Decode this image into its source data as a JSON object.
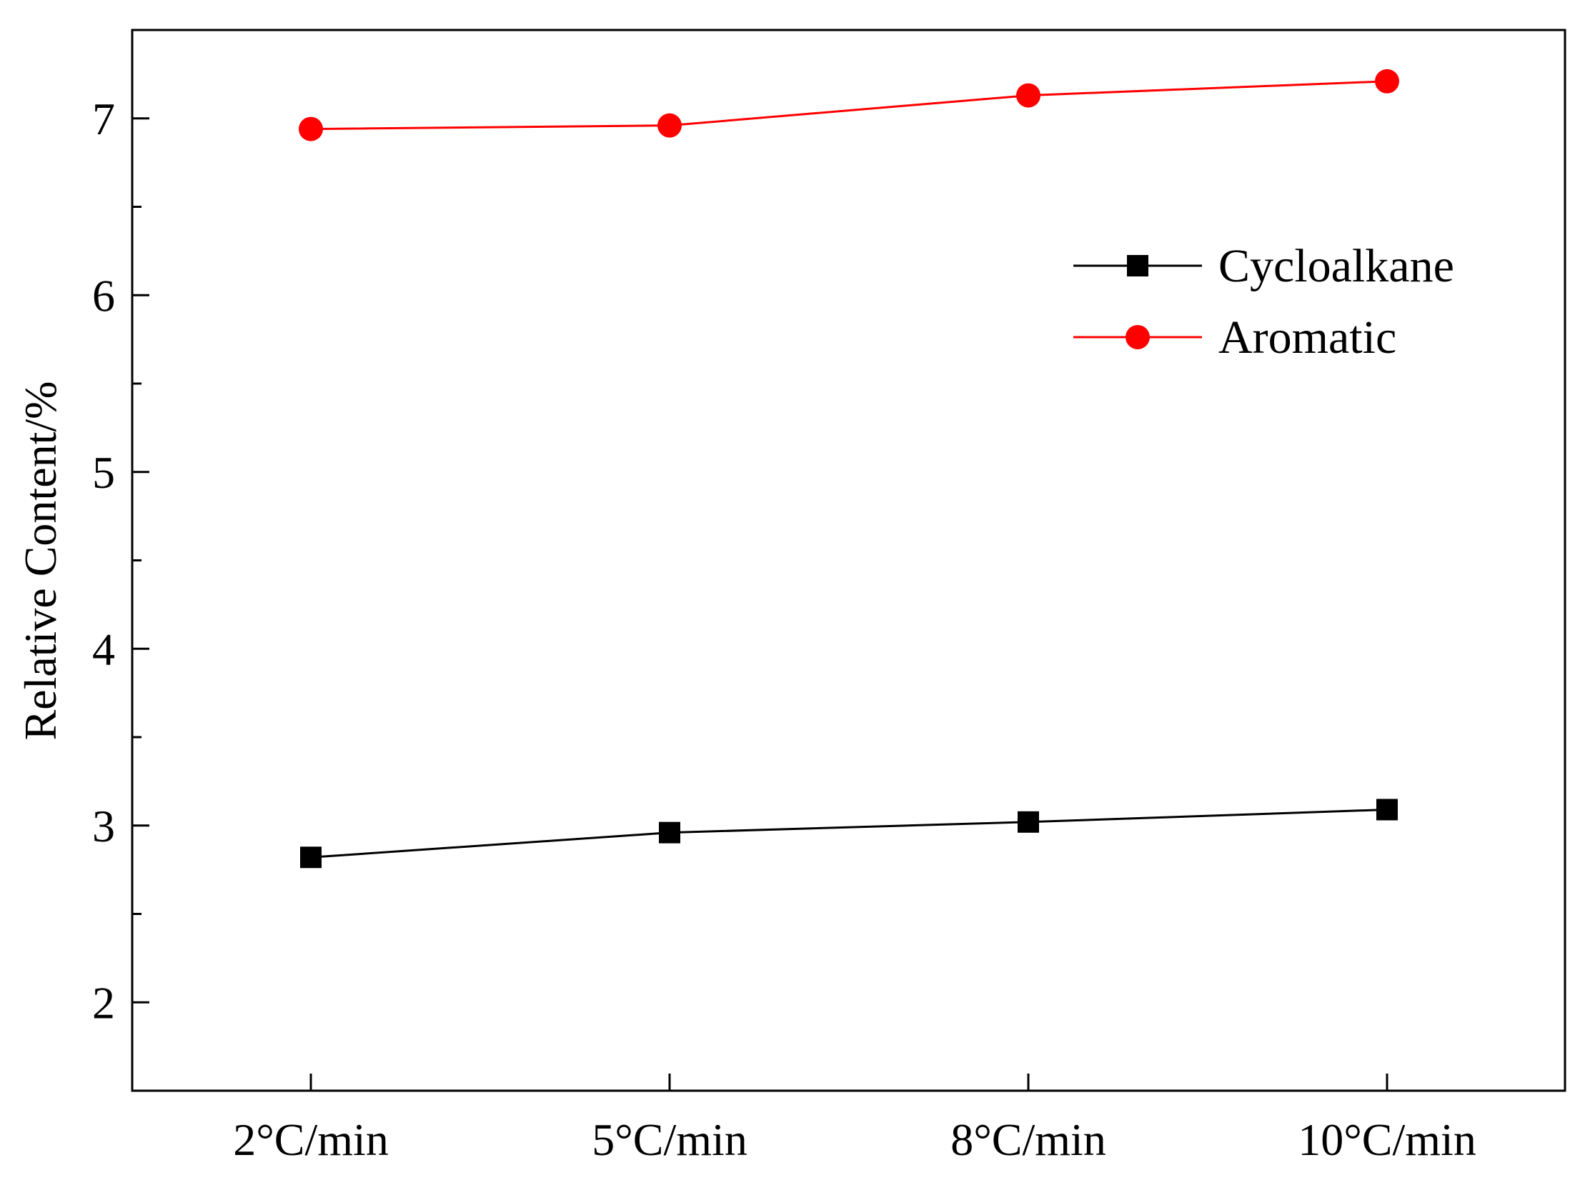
{
  "chart_data": {
    "type": "line",
    "title": "",
    "xlabel": "",
    "ylabel": "Relative Content/%",
    "categories": [
      "2°C/min",
      "5°C/min",
      "8°C/min",
      "10°C/min"
    ],
    "ylim": [
      1.5,
      7.5
    ],
    "yticks": [
      2,
      3,
      4,
      5,
      6,
      7
    ],
    "y_minor_ticks": [
      2.5,
      3.5,
      4.5,
      5.5,
      6.5
    ],
    "grid": false,
    "legend_position": "top-right",
    "series": [
      {
        "name": "Cycloalkane",
        "marker": "square",
        "color": "#000000",
        "values": [
          2.82,
          2.96,
          3.02,
          3.09
        ]
      },
      {
        "name": "Aromatic",
        "marker": "circle",
        "color": "#ff0000",
        "values": [
          6.94,
          6.96,
          7.13,
          7.21
        ]
      }
    ]
  }
}
